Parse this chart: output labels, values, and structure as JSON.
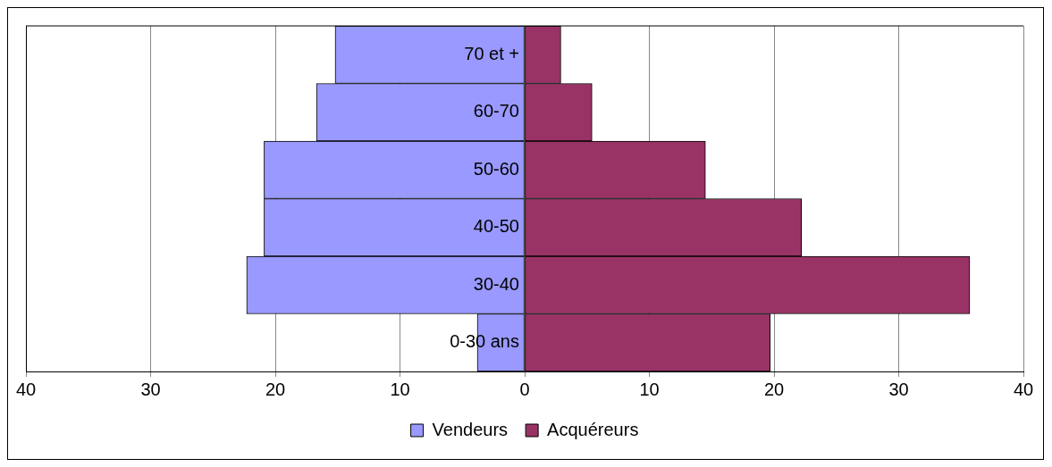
{
  "chart_data": {
    "type": "bar",
    "orientation": "horizontal",
    "stacked": true,
    "categories": [
      "70 et +",
      "60-70",
      "50-60",
      "40-50",
      "30-40",
      "0-30 ans"
    ],
    "series": [
      {
        "name": "Vendeurs",
        "color": "#9999ff",
        "values": [
          -15.2,
          -16.7,
          -20.9,
          -20.9,
          -22.3,
          -3.8
        ]
      },
      {
        "name": "Acquéreurs",
        "color": "#993366",
        "values": [
          2.9,
          5.4,
          14.5,
          22.2,
          35.7,
          19.7
        ]
      }
    ],
    "xlim": [
      -40,
      40
    ],
    "xticks": [
      {
        "value": -40,
        "label": "40"
      },
      {
        "value": -30,
        "label": "30"
      },
      {
        "value": -20,
        "label": "20"
      },
      {
        "value": -10,
        "label": "10"
      },
      0,
      10,
      20,
      30,
      40
    ],
    "grid": "x",
    "legend": "bottom"
  }
}
